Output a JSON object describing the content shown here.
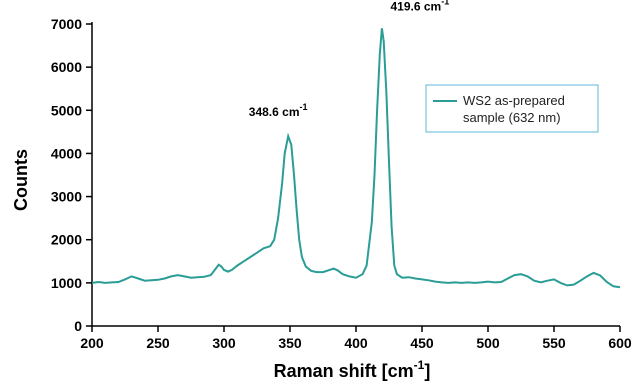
{
  "chart_data": {
    "type": "line",
    "xlabel": "Raman shift [cm",
    "xlabel_sup": "-1",
    "xlabel_end": "]",
    "ylabel": "Counts",
    "xlim": [
      200,
      600
    ],
    "ylim": [
      0,
      7000
    ],
    "xticks": [
      200,
      250,
      300,
      350,
      400,
      450,
      500,
      550,
      600
    ],
    "yticks": [
      0,
      1000,
      2000,
      3000,
      4000,
      5000,
      6000,
      7000
    ],
    "grid": false,
    "legend_position": "right",
    "series_color": "#2a9d96",
    "legend": {
      "line1": "WS2 as-prepared",
      "line2": "sample (632 nm)"
    },
    "annotations": [
      {
        "text": "348.6 cm",
        "sup": "-1",
        "x": 348.6,
        "y": 4400
      },
      {
        "text": "419.6 cm",
        "sup": "-1",
        "x": 419.6,
        "y": 6900
      }
    ],
    "series": [
      {
        "name": "WS2 as-prepared sample (632 nm)",
        "x": [
          200,
          205,
          210,
          215,
          220,
          225,
          230,
          235,
          240,
          245,
          250,
          255,
          260,
          265,
          270,
          275,
          280,
          285,
          290,
          293,
          296,
          298,
          300,
          303,
          306,
          310,
          315,
          320,
          325,
          330,
          335,
          338,
          341,
          344,
          346,
          348.6,
          351,
          353,
          355,
          357,
          359,
          362,
          366,
          370,
          375,
          380,
          383,
          386,
          390,
          395,
          400,
          405,
          408,
          410,
          412,
          414,
          416,
          418,
          419.6,
          421,
          423,
          425,
          427,
          429,
          431,
          435,
          440,
          445,
          450,
          455,
          460,
          465,
          470,
          475,
          480,
          485,
          490,
          495,
          500,
          505,
          510,
          515,
          520,
          525,
          530,
          535,
          540,
          545,
          550,
          555,
          560,
          565,
          570,
          575,
          580,
          585,
          590,
          595,
          600
        ],
        "y": [
          1000,
          1020,
          1000,
          1010,
          1020,
          1080,
          1150,
          1100,
          1050,
          1060,
          1070,
          1100,
          1150,
          1180,
          1150,
          1120,
          1130,
          1140,
          1180,
          1300,
          1420,
          1380,
          1300,
          1260,
          1300,
          1400,
          1500,
          1600,
          1700,
          1800,
          1850,
          2000,
          2500,
          3300,
          4000,
          4400,
          4200,
          3500,
          2700,
          2000,
          1600,
          1380,
          1280,
          1250,
          1250,
          1300,
          1330,
          1290,
          1200,
          1150,
          1120,
          1200,
          1400,
          1900,
          2400,
          3500,
          5000,
          6300,
          6900,
          6600,
          5400,
          3800,
          2300,
          1400,
          1200,
          1120,
          1130,
          1100,
          1080,
          1060,
          1030,
          1010,
          1000,
          1010,
          1000,
          1010,
          1000,
          1010,
          1030,
          1010,
          1020,
          1100,
          1180,
          1200,
          1150,
          1050,
          1010,
          1050,
          1080,
          1000,
          940,
          960,
          1050,
          1150,
          1230,
          1170,
          1020,
          920,
          900
        ]
      }
    ]
  }
}
